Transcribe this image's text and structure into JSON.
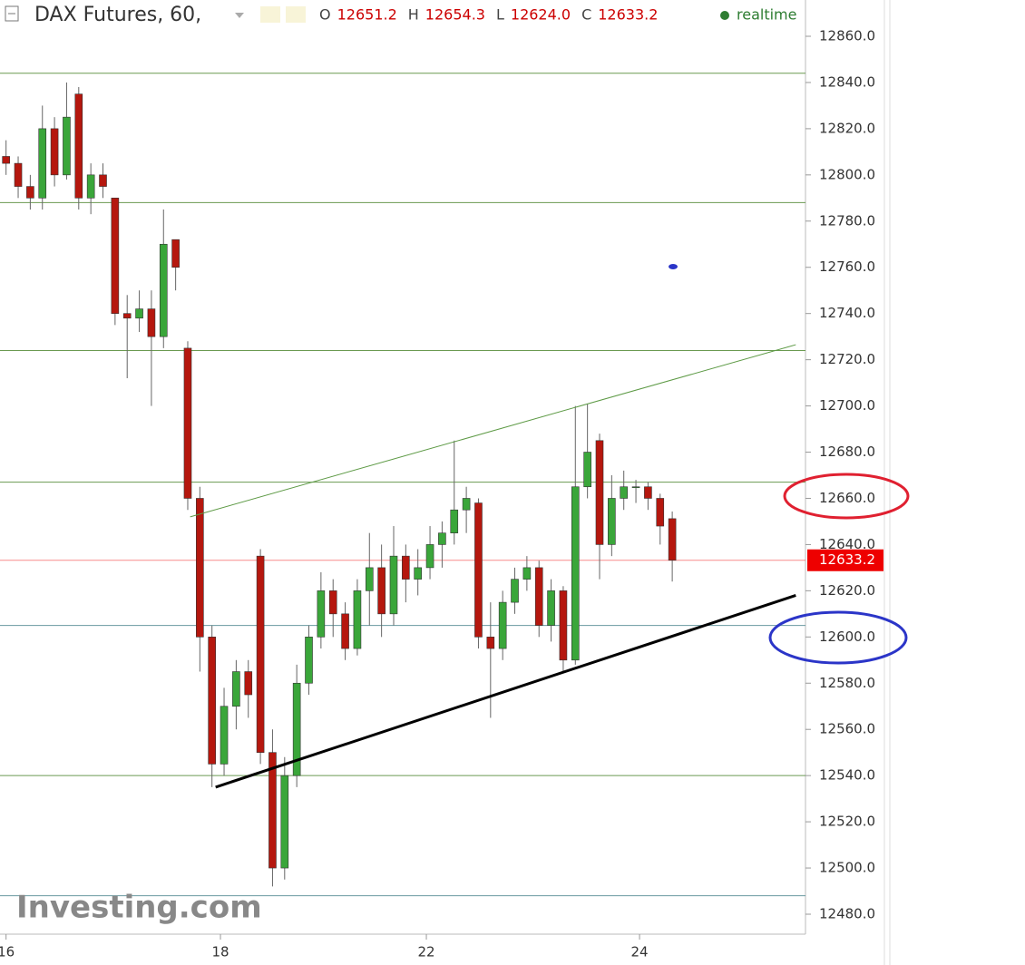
{
  "chart_data": {
    "type": "candlestick",
    "title": "DAX Futures, 60,",
    "ohlc_legend": [
      {
        "key": "O",
        "value": "12651.2"
      },
      {
        "key": "H",
        "value": "12654.3"
      },
      {
        "key": "L",
        "value": "12624.0"
      },
      {
        "key": "C",
        "value": "12633.2"
      }
    ],
    "status": "realtime",
    "watermark": "Investing.com",
    "up_color": "#3aa63a",
    "down_color": "#b5170e",
    "x": [
      0,
      1,
      2,
      3,
      4,
      5,
      6,
      7,
      8,
      9,
      10,
      11,
      12,
      13,
      14,
      15,
      16,
      17,
      18,
      19,
      20,
      21,
      22,
      23,
      24,
      25,
      26,
      27,
      28,
      29,
      30,
      31,
      32,
      33,
      34,
      35,
      36,
      37,
      38,
      39,
      40,
      41,
      42,
      43,
      44,
      45,
      46,
      47,
      48,
      49,
      50,
      51,
      52,
      53,
      54,
      55
    ],
    "ohlc": [
      [
        12808,
        12815,
        12800,
        12805
      ],
      [
        12805,
        12808,
        12790,
        12795
      ],
      [
        12795,
        12800,
        12785,
        12790
      ],
      [
        12790,
        12830,
        12785,
        12820
      ],
      [
        12820,
        12825,
        12795,
        12800
      ],
      [
        12800,
        12840,
        12798,
        12825
      ],
      [
        12835,
        12838,
        12785,
        12790
      ],
      [
        12790,
        12805,
        12783,
        12800
      ],
      [
        12800,
        12805,
        12790,
        12795
      ],
      [
        12790,
        12790,
        12735,
        12740
      ],
      [
        12740,
        12748,
        12712,
        12738
      ],
      [
        12738,
        12750,
        12732,
        12742
      ],
      [
        12742,
        12750,
        12700,
        12730
      ],
      [
        12730,
        12785,
        12725,
        12770
      ],
      [
        12772,
        12772,
        12750,
        12760
      ],
      [
        12725,
        12728,
        12655,
        12660
      ],
      [
        12660,
        12665,
        12585,
        12600
      ],
      [
        12600,
        12605,
        12535,
        12545
      ],
      [
        12545,
        12578,
        12540,
        12570
      ],
      [
        12570,
        12590,
        12560,
        12585
      ],
      [
        12585,
        12590,
        12565,
        12575
      ],
      [
        12635,
        12638,
        12545,
        12550
      ],
      [
        12550,
        12560,
        12492,
        12500
      ],
      [
        12500,
        12548,
        12495,
        12540
      ],
      [
        12540,
        12588,
        12535,
        12580
      ],
      [
        12580,
        12605,
        12575,
        12600
      ],
      [
        12600,
        12628,
        12595,
        12620
      ],
      [
        12620,
        12625,
        12600,
        12610
      ],
      [
        12610,
        12615,
        12590,
        12595
      ],
      [
        12595,
        12625,
        12592,
        12620
      ],
      [
        12620,
        12645,
        12605,
        12630
      ],
      [
        12630,
        12640,
        12600,
        12610
      ],
      [
        12610,
        12648,
        12605,
        12635
      ],
      [
        12635,
        12640,
        12615,
        12625
      ],
      [
        12625,
        12638,
        12618,
        12630
      ],
      [
        12630,
        12648,
        12625,
        12640
      ],
      [
        12640,
        12650,
        12630,
        12645
      ],
      [
        12645,
        12685,
        12640,
        12655
      ],
      [
        12655,
        12665,
        12645,
        12660
      ],
      [
        12658,
        12660,
        12595,
        12600
      ],
      [
        12600,
        12615,
        12565,
        12595
      ],
      [
        12595,
        12620,
        12590,
        12615
      ],
      [
        12615,
        12630,
        12610,
        12625
      ],
      [
        12625,
        12635,
        12620,
        12630
      ],
      [
        12630,
        12633,
        12600,
        12605
      ],
      [
        12605,
        12625,
        12598,
        12620
      ],
      [
        12620,
        12622,
        12585,
        12590
      ],
      [
        12590,
        12700,
        12588,
        12665
      ],
      [
        12665,
        12701,
        12660,
        12680
      ],
      [
        12685,
        12688,
        12625,
        12640
      ],
      [
        12640,
        12670,
        12635,
        12660
      ],
      [
        12660,
        12672,
        12655,
        12665
      ],
      [
        12665,
        12668,
        12658,
        12665
      ],
      [
        12665,
        12667,
        12655,
        12660
      ],
      [
        12660,
        12662,
        12640,
        12648
      ],
      [
        12651.2,
        12654.3,
        12624.0,
        12633.2
      ]
    ],
    "xlim": [
      -0.5,
      66
    ],
    "xticks": [
      {
        "value": 0,
        "label": "16"
      },
      {
        "value": 17.7,
        "label": "18"
      },
      {
        "value": 34.7,
        "label": "22"
      },
      {
        "value": 52.3,
        "label": "24"
      }
    ],
    "ylim": [
      12480,
      12860
    ],
    "yticks": [
      {
        "value": 12480,
        "label": "12480.0"
      },
      {
        "value": 12500,
        "label": "12500.0"
      },
      {
        "value": 12520,
        "label": "12520.0"
      },
      {
        "value": 12540,
        "label": "12540.0"
      },
      {
        "value": 12560,
        "label": "12560.0"
      },
      {
        "value": 12580,
        "label": "12580.0"
      },
      {
        "value": 12600,
        "label": "12600.0"
      },
      {
        "value": 12620,
        "label": "12620.0"
      },
      {
        "value": 12640,
        "label": "12640.0"
      },
      {
        "value": 12660,
        "label": "12660.0"
      },
      {
        "value": 12680,
        "label": "12680.0"
      },
      {
        "value": 12700,
        "label": "12700.0"
      },
      {
        "value": 12720,
        "label": "12720.0"
      },
      {
        "value": 12740,
        "label": "12740.0"
      },
      {
        "value": 12760,
        "label": "12760.0"
      },
      {
        "value": 12780,
        "label": "12780.0"
      },
      {
        "value": 12800,
        "label": "12800.0"
      },
      {
        "value": 12820,
        "label": "12820.0"
      },
      {
        "value": 12840,
        "label": "12840.0"
      },
      {
        "value": 12860,
        "label": "12860.0"
      }
    ],
    "last_price": {
      "value": 12633.2,
      "label": "12633.2",
      "color": "#ee0000"
    },
    "hlines": [
      {
        "value": 12844,
        "color": "#6a9a50"
      },
      {
        "value": 12788,
        "color": "#6a9a50"
      },
      {
        "value": 12724,
        "color": "#6a9a50"
      },
      {
        "value": 12667,
        "color": "#6a9a50"
      },
      {
        "value": 12605,
        "color": "#6a9aa0"
      },
      {
        "value": 12540,
        "color": "#6a9a50"
      },
      {
        "value": 12488,
        "color": "#6a9aa0"
      }
    ],
    "trendlines": [
      {
        "x": [
          15.2,
          65.2
        ],
        "y": [
          12652,
          12726.5
        ],
        "color": "#5d9a45",
        "width": 1
      },
      {
        "x": [
          17.3,
          65.2
        ],
        "y": [
          12535,
          12618
        ],
        "color": "#000000",
        "width": 3
      }
    ]
  }
}
